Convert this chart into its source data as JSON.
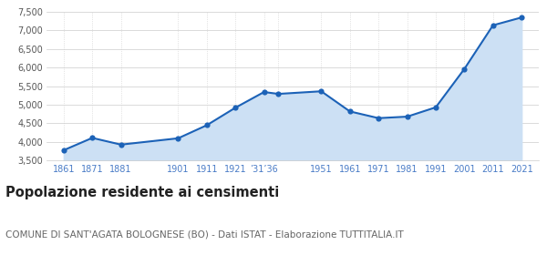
{
  "years": [
    1861,
    1871,
    1881,
    1901,
    1911,
    1921,
    1931,
    1936,
    1951,
    1961,
    1971,
    1981,
    1991,
    2001,
    2011,
    2021
  ],
  "population": [
    3780,
    4110,
    3930,
    4100,
    4450,
    4920,
    5340,
    5290,
    5360,
    4820,
    4640,
    4680,
    4930,
    5960,
    7130,
    7340
  ],
  "line_color": "#1c62b7",
  "fill_color": "#cce0f4",
  "marker_color": "#1c62b7",
  "background_color": "#ffffff",
  "grid_color": "#cccccc",
  "title": "Popolazione residente ai censimenti",
  "subtitle": "COMUNE DI SANT'AGATA BOLOGNESE (BO) - Dati ISTAT - Elaborazione TUTTITALIA.IT",
  "title_fontsize": 10.5,
  "subtitle_fontsize": 7.5,
  "ylim": [
    3500,
    7500
  ],
  "yticks": [
    3500,
    4000,
    4500,
    5000,
    5500,
    6000,
    6500,
    7000,
    7500
  ],
  "x_axis_color": "#4a7cc7",
  "y_tick_color": "#555555"
}
